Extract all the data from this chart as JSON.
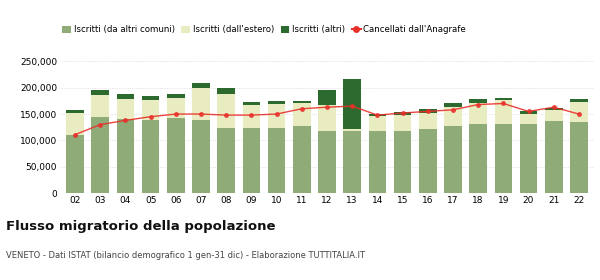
{
  "years": [
    "02",
    "03",
    "04",
    "05",
    "06",
    "07",
    "08",
    "09",
    "10",
    "11",
    "12",
    "13",
    "14",
    "15",
    "16",
    "17",
    "18",
    "19",
    "20",
    "21",
    "22"
  ],
  "iscritti_comuni": [
    110000,
    145000,
    140000,
    138000,
    142000,
    138000,
    123000,
    123000,
    123000,
    128000,
    118000,
    118000,
    118000,
    118000,
    122000,
    128000,
    132000,
    132000,
    132000,
    137000,
    135000
  ],
  "iscritti_estero": [
    42000,
    42000,
    38000,
    38000,
    38000,
    62000,
    65000,
    44000,
    46000,
    42000,
    50000,
    3000,
    28000,
    30000,
    30000,
    35000,
    38000,
    44000,
    18000,
    20000,
    38000
  ],
  "iscritti_altri": [
    5000,
    8000,
    10000,
    8000,
    8000,
    8000,
    12000,
    5000,
    5000,
    5000,
    28000,
    95000,
    5000,
    5000,
    8000,
    8000,
    8000,
    5000,
    5000,
    5000,
    5000
  ],
  "cancellati": [
    111000,
    130000,
    138000,
    145000,
    150000,
    150000,
    148000,
    148000,
    150000,
    160000,
    163000,
    165000,
    148000,
    152000,
    155000,
    158000,
    168000,
    170000,
    155000,
    163000,
    150000
  ],
  "color_comuni": "#8fac78",
  "color_estero": "#e8ecc0",
  "color_altri": "#2d6a30",
  "color_cancellati": "#e8302a",
  "title": "Flusso migratorio della popolazione",
  "subtitle": "VENETO - Dati ISTAT (bilancio demografico 1 gen-31 dic) - Elaborazione TUTTITALIA.IT",
  "legend_labels": [
    "Iscritti (da altri comuni)",
    "Iscritti (dall'estero)",
    "Iscritti (altri)",
    "Cancellati dall'Anagrafe"
  ],
  "ylim": [
    0,
    260000
  ],
  "yticks": [
    0,
    50000,
    100000,
    150000,
    200000,
    250000
  ],
  "ytick_labels": [
    "0",
    "50,000",
    "100,000",
    "150,000",
    "200,000",
    "250,000"
  ],
  "bg_color": "#ffffff",
  "grid_color": "#cccccc"
}
